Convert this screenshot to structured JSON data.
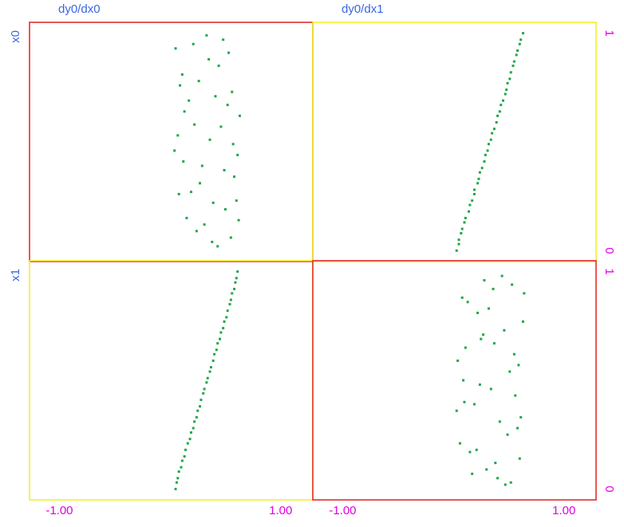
{
  "chart_data": [
    {
      "type": "scatter",
      "title": "dy0/dx0",
      "ylabel": "x0",
      "color": "#1fa64a",
      "frame_color": "#e02020",
      "xlim": [
        -1.27,
        1.29
      ],
      "ylim": [
        -0.05,
        1.05
      ],
      "x": [
        0.05,
        0.31,
        0.52,
        0.12,
        0.44,
        0.6,
        0.22,
        0.38,
        0.09,
        0.57,
        0.27,
        0.48,
        0.15,
        0.63,
        0.35,
        0.19,
        0.55,
        0.41,
        0.07,
        0.29,
        0.5,
        0.11,
        0.61,
        0.33,
        0.24,
        0.46,
        0.58,
        0.17,
        0.39,
        0.04,
        0.53,
        0.26,
        0.43,
        0.13,
        0.62,
        0.36,
        0.21,
        0.49,
        0.08,
        0.56
      ],
      "y": [
        0.93,
        0.12,
        0.67,
        0.41,
        0.85,
        0.23,
        0.58,
        0.04,
        0.76,
        0.49,
        0.31,
        0.97,
        0.15,
        0.62,
        0.88,
        0.27,
        0.06,
        0.71,
        0.53,
        0.39,
        0.19,
        0.81,
        0.44,
        0.99,
        0.09,
        0.57,
        0.34,
        0.69,
        0.22,
        0.46,
        0.91,
        0.78,
        0.02,
        0.64,
        0.14,
        0.51,
        0.95,
        0.37,
        0.26,
        0.73
      ]
    },
    {
      "type": "scatter",
      "title": "dy0/dx1",
      "color": "#1fa64a",
      "frame_color": "#f0f020",
      "xlim": [
        -1.27,
        1.29
      ],
      "ylim": [
        -0.05,
        1.05
      ],
      "yticks": [
        0,
        1
      ],
      "x": [
        0.03,
        0.05,
        0.05,
        0.07,
        0.08,
        0.1,
        0.11,
        0.14,
        0.15,
        0.17,
        0.19,
        0.19,
        0.22,
        0.23,
        0.24,
        0.26,
        0.28,
        0.29,
        0.31,
        0.32,
        0.34,
        0.35,
        0.37,
        0.39,
        0.4,
        0.42,
        0.43,
        0.45,
        0.47,
        0.48,
        0.49,
        0.51,
        0.52,
        0.54,
        0.55,
        0.57,
        0.58,
        0.6,
        0.61,
        0.63
      ],
      "y": [
        0.0,
        0.03,
        0.05,
        0.08,
        0.1,
        0.13,
        0.15,
        0.18,
        0.21,
        0.23,
        0.26,
        0.28,
        0.31,
        0.33,
        0.36,
        0.38,
        0.41,
        0.44,
        0.46,
        0.49,
        0.51,
        0.54,
        0.56,
        0.59,
        0.62,
        0.64,
        0.67,
        0.69,
        0.72,
        0.74,
        0.77,
        0.79,
        0.82,
        0.85,
        0.87,
        0.9,
        0.92,
        0.95,
        0.97,
        1.0
      ]
    },
    {
      "type": "scatter",
      "ylabel": "x1",
      "color": "#1fa64a",
      "frame_color": "#f0f020",
      "xlim": [
        -1.27,
        1.29
      ],
      "ylim": [
        -0.05,
        1.05
      ],
      "xticks": [
        {
          "value": -1,
          "label": "-1.00"
        },
        {
          "value": 1,
          "label": "1.00"
        }
      ],
      "x": [
        0.05,
        0.06,
        0.07,
        0.08,
        0.1,
        0.11,
        0.13,
        0.14,
        0.16,
        0.18,
        0.19,
        0.21,
        0.22,
        0.24,
        0.25,
        0.27,
        0.28,
        0.3,
        0.31,
        0.33,
        0.34,
        0.36,
        0.37,
        0.39,
        0.4,
        0.42,
        0.43,
        0.45,
        0.46,
        0.48,
        0.49,
        0.51,
        0.52,
        0.54,
        0.55,
        0.56,
        0.58,
        0.59,
        0.6,
        0.61
      ],
      "y": [
        0.0,
        0.03,
        0.05,
        0.08,
        0.1,
        0.13,
        0.15,
        0.18,
        0.21,
        0.23,
        0.26,
        0.28,
        0.31,
        0.33,
        0.36,
        0.38,
        0.41,
        0.44,
        0.46,
        0.49,
        0.51,
        0.54,
        0.56,
        0.59,
        0.62,
        0.64,
        0.67,
        0.69,
        0.72,
        0.74,
        0.77,
        0.79,
        0.82,
        0.85,
        0.87,
        0.9,
        0.92,
        0.95,
        0.97,
        1.0
      ]
    },
    {
      "type": "scatter",
      "color": "#1fa64a",
      "frame_color": "#e02020",
      "xlim": [
        -1.27,
        1.29
      ],
      "ylim": [
        -0.05,
        1.05
      ],
      "yticks": [
        0,
        1
      ],
      "xticks": [
        {
          "value": -1,
          "label": "-1.00"
        },
        {
          "value": 1,
          "label": "1.00"
        }
      ],
      "x": [
        0.4,
        0.08,
        0.61,
        0.27,
        0.15,
        0.53,
        0.34,
        0.04,
        0.47,
        0.22,
        0.58,
        0.11,
        0.38,
        0.63,
        0.19,
        0.44,
        0.06,
        0.51,
        0.3,
        0.56,
        0.13,
        0.42,
        0.25,
        0.6,
        0.09,
        0.36,
        0.49,
        0.17,
        0.55,
        0.32,
        0.03,
        0.46,
        0.21,
        0.59,
        0.28,
        0.1,
        0.52,
        0.37,
        0.64,
        0.24
      ],
      "y": [
        0.05,
        0.88,
        0.33,
        0.71,
        0.17,
        0.94,
        0.46,
        0.59,
        0.02,
        0.81,
        0.28,
        0.65,
        0.12,
        0.77,
        0.39,
        0.98,
        0.21,
        0.54,
        0.09,
        0.43,
        0.86,
        0.31,
        0.69,
        0.14,
        0.5,
        0.92,
        0.25,
        0.07,
        0.62,
        0.83,
        0.36,
        0.73,
        0.18,
        0.57,
        0.96,
        0.4,
        0.03,
        0.67,
        0.9,
        0.48
      ]
    }
  ]
}
